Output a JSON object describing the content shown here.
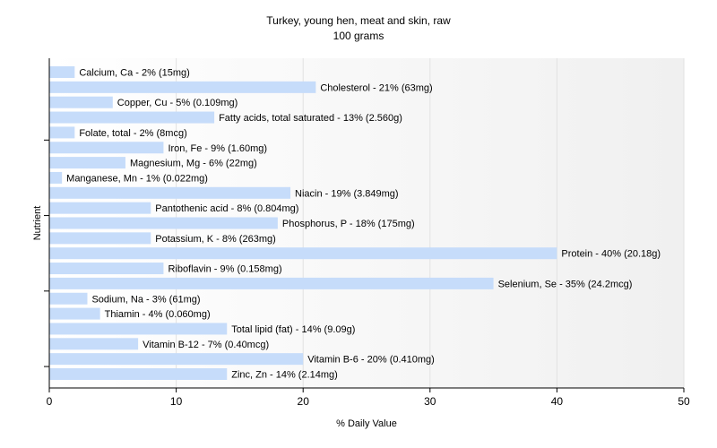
{
  "chart_data": {
    "type": "bar",
    "orientation": "horizontal",
    "title": "Turkey, young hen, meat and skin, raw",
    "subtitle": "100 grams",
    "xlabel": "% Daily Value",
    "ylabel": "Nutrient",
    "xlim": [
      0,
      50
    ],
    "xticks": [
      0,
      10,
      20,
      30,
      40,
      50
    ],
    "grid": true,
    "bar_color": "#c6dcfa",
    "categories": [
      "Calcium, Ca",
      "Cholesterol",
      "Copper, Cu",
      "Fatty acids, total saturated",
      "Folate, total",
      "Iron, Fe",
      "Magnesium, Mg",
      "Manganese, Mn",
      "Niacin",
      "Pantothenic acid",
      "Phosphorus, P",
      "Potassium, K",
      "Protein",
      "Riboflavin",
      "Selenium, Se",
      "Sodium, Na",
      "Thiamin",
      "Total lipid (fat)",
      "Vitamin B-12",
      "Vitamin B-6",
      "Zinc, Zn"
    ],
    "values": [
      2,
      21,
      5,
      13,
      2,
      9,
      6,
      1,
      19,
      8,
      18,
      8,
      40,
      9,
      35,
      3,
      4,
      14,
      7,
      20,
      14
    ],
    "labels": [
      "Calcium, Ca - 2% (15mg)",
      "Cholesterol - 21% (63mg)",
      "Copper, Cu - 5% (0.109mg)",
      "Fatty acids, total saturated - 13% (2.560g)",
      "Folate, total - 2% (8mcg)",
      "Iron, Fe - 9% (1.60mg)",
      "Magnesium, Mg - 6% (22mg)",
      "Manganese, Mn - 1% (0.022mg)",
      "Niacin - 19% (3.849mg)",
      "Pantothenic acid - 8% (0.804mg)",
      "Phosphorus, P - 18% (175mg)",
      "Potassium, K - 8% (263mg)",
      "Protein - 40% (20.18g)",
      "Riboflavin - 9% (0.158mg)",
      "Selenium, Se - 35% (24.2mcg)",
      "Sodium, Na - 3% (61mg)",
      "Thiamin - 4% (0.060mg)",
      "Total lipid (fat) - 14% (9.09g)",
      "Vitamin B-12 - 7% (0.40mcg)",
      "Vitamin B-6 - 20% (0.410mg)",
      "Zinc, Zn - 14% (2.14mg)"
    ]
  }
}
